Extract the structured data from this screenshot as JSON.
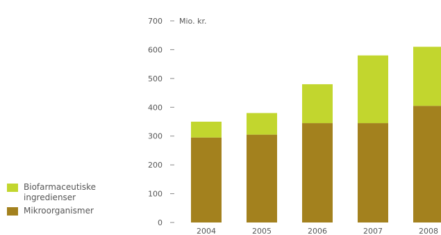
{
  "chart_data": {
    "type": "bar",
    "stacked": true,
    "unit_label": "Mio. kr.",
    "categories": [
      "2004",
      "2005",
      "2006",
      "2007",
      "2008"
    ],
    "series": [
      {
        "name": "Mikroorganismer",
        "color": "#a3811e",
        "values": [
          295,
          305,
          345,
          345,
          405
        ]
      },
      {
        "name": "Biofarmaceutiske ingredienser",
        "color": "#c2d62e",
        "values": [
          55,
          75,
          135,
          235,
          205
        ]
      }
    ],
    "ylim": [
      0,
      700
    ],
    "yticks": [
      "0",
      "100",
      "200",
      "300",
      "400",
      "500",
      "600",
      "700"
    ],
    "legend_position": "bottom-left"
  },
  "legend": {
    "items": [
      {
        "line1": "Biofarmaceutiske",
        "line2": "ingredienser",
        "color": "#c2d62e"
      },
      {
        "line1": "Mikroorganismer",
        "line2": "",
        "color": "#a3811e"
      }
    ]
  }
}
